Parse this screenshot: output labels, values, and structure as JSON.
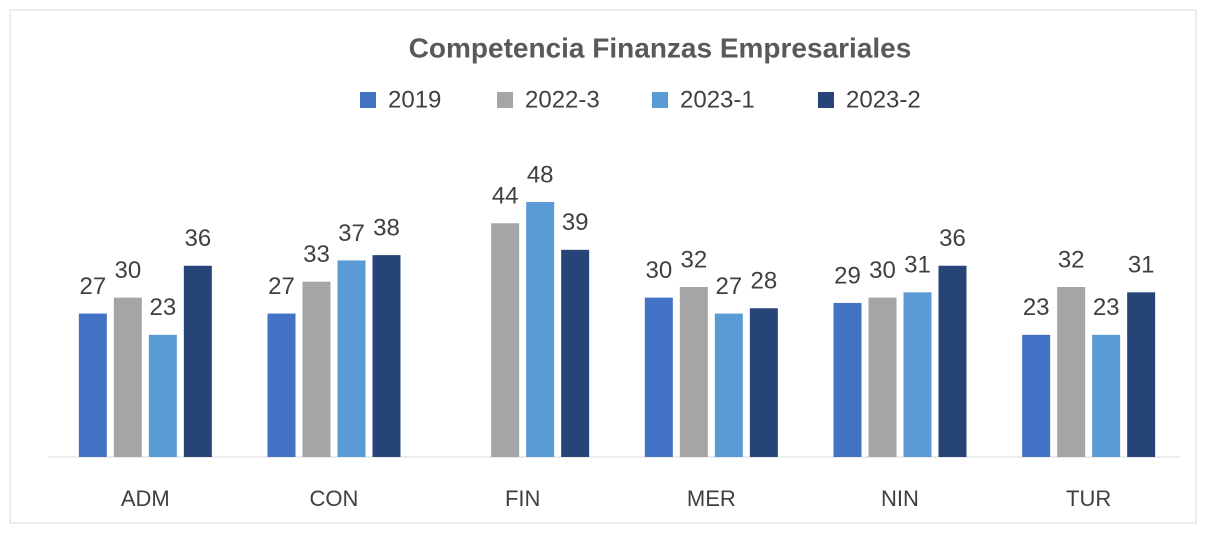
{
  "chart_data": {
    "type": "bar",
    "title": "Competencia Finanzas Empresariales",
    "categories": [
      "ADM",
      "CON",
      "FIN",
      "MER",
      "NIN",
      "TUR"
    ],
    "series": [
      {
        "name": "2019",
        "color": "#4472c4",
        "values": [
          27,
          27,
          null,
          30,
          29,
          23
        ]
      },
      {
        "name": "2022-3",
        "color": "#a5a5a5",
        "values": [
          30,
          33,
          44,
          32,
          30,
          32
        ]
      },
      {
        "name": "2023-1",
        "color": "#5b9bd5",
        "values": [
          23,
          37,
          48,
          27,
          31,
          23
        ]
      },
      {
        "name": "2023-2",
        "color": "#264478",
        "values": [
          36,
          38,
          39,
          28,
          36,
          31
        ]
      }
    ],
    "legend": "top"
  }
}
